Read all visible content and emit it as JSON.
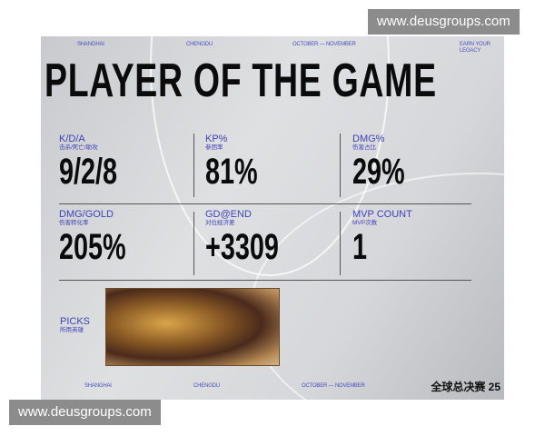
{
  "watermark": {
    "top": "www.deusgroups.com",
    "bottom": "www.deusgroups.com"
  },
  "header": {
    "city1": "SHANGHAI",
    "city2": "CHENGDU",
    "dates": "OCTOBER — NOVEMBER",
    "tagline_1": "EARN YOUR",
    "tagline_2": "LEGACY"
  },
  "title": "PLAYER OF THE GAME",
  "stats": [
    {
      "label": "K/D/A",
      "sub": "击杀/死亡/助攻",
      "value": "9/2/8"
    },
    {
      "label": "KP%",
      "sub": "参团率",
      "value": "81%"
    },
    {
      "label": "DMG%",
      "sub": "伤害占比",
      "value": "29%"
    },
    {
      "label": "DMG/GOLD",
      "sub": "伤害转化率",
      "value": "205%"
    },
    {
      "label": "GD@END",
      "sub": "对位经济差",
      "value": "+3309"
    },
    {
      "label": "MVP COUNT",
      "sub": "MVP次数",
      "value": "1"
    }
  ],
  "picks": {
    "label": "PICKS",
    "sub": "所用英雄"
  },
  "footer": {
    "city1": "SHANGHAI",
    "city2": "CHENGDU",
    "dates": "OCTOBER — NOVEMBER",
    "logo": "全球总决赛 25"
  },
  "colors": {
    "accent": "#3e42b8",
    "text": "#0b0b0b",
    "background": "#d6d7da"
  }
}
